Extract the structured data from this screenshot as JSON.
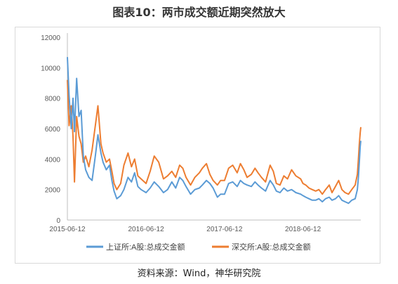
{
  "figure_title": "图表10：两市成交额近期突然放大",
  "source_note": "资料来源：Wind，神华研究院",
  "chart_data": {
    "type": "line",
    "title": "",
    "xlabel": "",
    "ylabel": "",
    "ylim": [
      0,
      12000
    ],
    "yticks": [
      0,
      2000,
      4000,
      6000,
      8000,
      10000,
      12000
    ],
    "x_tick_labels": [
      "2015-06-12",
      "2016-06-12",
      "2017-06-12",
      "2018-06-12"
    ],
    "x_tick_dates": [
      "2015-06-12",
      "2016-06-12",
      "2017-06-12",
      "2018-06-12"
    ],
    "xlim": [
      "2015-06-12",
      "2019-03-08"
    ],
    "grid": false,
    "legend_position": "bottom",
    "series": [
      {
        "name": "上证所:A股:总成交金额",
        "color": "#5b9bd5",
        "x": [
          "2015-06-12",
          "2015-06-20",
          "2015-06-30",
          "2015-07-08",
          "2015-07-15",
          "2015-07-25",
          "2015-08-05",
          "2015-08-15",
          "2015-08-25",
          "2015-09-05",
          "2015-09-20",
          "2015-10-05",
          "2015-10-20",
          "2015-11-01",
          "2015-11-15",
          "2015-11-25",
          "2015-12-10",
          "2015-12-25",
          "2016-01-05",
          "2016-01-15",
          "2016-01-28",
          "2016-02-15",
          "2016-03-01",
          "2016-03-20",
          "2016-04-05",
          "2016-04-20",
          "2016-05-05",
          "2016-05-20",
          "2016-06-12",
          "2016-07-01",
          "2016-07-20",
          "2016-08-10",
          "2016-09-01",
          "2016-09-20",
          "2016-10-10",
          "2016-10-28",
          "2016-11-15",
          "2016-11-30",
          "2016-12-15",
          "2017-01-05",
          "2017-01-25",
          "2017-02-15",
          "2017-03-01",
          "2017-03-20",
          "2017-04-05",
          "2017-04-20",
          "2017-05-10",
          "2017-05-25",
          "2017-06-12",
          "2017-07-01",
          "2017-07-20",
          "2017-08-10",
          "2017-08-25",
          "2017-09-10",
          "2017-09-25",
          "2017-10-15",
          "2017-11-01",
          "2017-11-15",
          "2017-12-01",
          "2017-12-20",
          "2018-01-10",
          "2018-01-25",
          "2018-02-08",
          "2018-02-25",
          "2018-03-15",
          "2018-04-01",
          "2018-04-20",
          "2018-05-10",
          "2018-06-01",
          "2018-06-12",
          "2018-06-25",
          "2018-07-10",
          "2018-07-25",
          "2018-08-10",
          "2018-08-25",
          "2018-09-10",
          "2018-09-25",
          "2018-10-12",
          "2018-10-25",
          "2018-11-10",
          "2018-11-25",
          "2018-12-10",
          "2018-12-25",
          "2019-01-10",
          "2019-01-25",
          "2019-02-10",
          "2019-02-20",
          "2019-02-25",
          "2019-03-01",
          "2019-03-05",
          "2019-03-08"
        ],
        "values": [
          10700,
          8200,
          6000,
          8000,
          5800,
          9300,
          6800,
          7200,
          4200,
          3300,
          2800,
          2600,
          4200,
          5600,
          4400,
          3800,
          3300,
          3600,
          2600,
          1900,
          1400,
          1600,
          2000,
          2800,
          2500,
          3100,
          2200,
          2000,
          1800,
          2100,
          2500,
          2200,
          1800,
          2000,
          2500,
          2100,
          2800,
          2600,
          2200,
          1700,
          2000,
          2100,
          2300,
          2600,
          2400,
          2100,
          1500,
          1700,
          1700,
          2400,
          2500,
          2200,
          2600,
          2400,
          2300,
          2200,
          2500,
          2300,
          2100,
          1900,
          2600,
          2300,
          1900,
          1800,
          2100,
          1900,
          2000,
          1800,
          1700,
          1600,
          1500,
          1400,
          1300,
          1300,
          1400,
          1200,
          1400,
          1500,
          1300,
          1400,
          1600,
          1300,
          1200,
          1100,
          1300,
          1400,
          2000,
          2800,
          3800,
          4800,
          5200
        ]
      },
      {
        "name": "深交所:A股:总成交金额",
        "color": "#ed7d31",
        "x": [
          "2015-06-12",
          "2015-06-20",
          "2015-06-30",
          "2015-07-08",
          "2015-07-15",
          "2015-07-25",
          "2015-08-05",
          "2015-08-15",
          "2015-08-25",
          "2015-09-05",
          "2015-09-20",
          "2015-10-05",
          "2015-10-20",
          "2015-11-01",
          "2015-11-15",
          "2015-11-25",
          "2015-12-10",
          "2015-12-25",
          "2016-01-05",
          "2016-01-15",
          "2016-01-28",
          "2016-02-15",
          "2016-03-01",
          "2016-03-20",
          "2016-04-05",
          "2016-04-20",
          "2016-05-05",
          "2016-05-20",
          "2016-06-12",
          "2016-07-01",
          "2016-07-20",
          "2016-08-10",
          "2016-09-01",
          "2016-09-20",
          "2016-10-10",
          "2016-10-28",
          "2016-11-15",
          "2016-11-30",
          "2016-12-15",
          "2017-01-05",
          "2017-01-25",
          "2017-02-15",
          "2017-03-01",
          "2017-03-20",
          "2017-04-05",
          "2017-04-20",
          "2017-05-10",
          "2017-05-25",
          "2017-06-12",
          "2017-07-01",
          "2017-07-20",
          "2017-08-10",
          "2017-08-25",
          "2017-09-10",
          "2017-09-25",
          "2017-10-15",
          "2017-11-01",
          "2017-11-15",
          "2017-12-01",
          "2017-12-20",
          "2018-01-10",
          "2018-01-25",
          "2018-02-08",
          "2018-02-25",
          "2018-03-15",
          "2018-04-01",
          "2018-04-20",
          "2018-05-10",
          "2018-06-01",
          "2018-06-12",
          "2018-06-25",
          "2018-07-10",
          "2018-07-25",
          "2018-08-10",
          "2018-08-25",
          "2018-09-10",
          "2018-09-25",
          "2018-10-12",
          "2018-10-25",
          "2018-11-10",
          "2018-11-25",
          "2018-12-10",
          "2018-12-25",
          "2019-01-10",
          "2019-01-25",
          "2019-02-10",
          "2019-02-20",
          "2019-02-25",
          "2019-03-01",
          "2019-03-05",
          "2019-03-08"
        ],
        "values": [
          9200,
          6200,
          7500,
          5500,
          2500,
          6800,
          5500,
          5000,
          3800,
          4200,
          3500,
          4600,
          6200,
          7500,
          5000,
          4400,
          3800,
          4000,
          3200,
          2400,
          2000,
          2400,
          3600,
          4400,
          3500,
          4000,
          2900,
          2700,
          2400,
          3200,
          4200,
          3800,
          2700,
          2900,
          3200,
          2800,
          3600,
          3400,
          2800,
          2300,
          2800,
          3100,
          3400,
          3700,
          3000,
          2600,
          2300,
          2600,
          2600,
          3400,
          3600,
          3100,
          3700,
          3300,
          2800,
          3000,
          3400,
          3100,
          2800,
          2500,
          3600,
          3200,
          2400,
          2300,
          2900,
          2700,
          3300,
          2900,
          2700,
          2400,
          2300,
          2100,
          2000,
          1900,
          2000,
          1700,
          2000,
          2300,
          1800,
          2200,
          2600,
          2000,
          1800,
          1700,
          2000,
          2300,
          3000,
          4000,
          5000,
          5700,
          6100
        ]
      }
    ]
  }
}
